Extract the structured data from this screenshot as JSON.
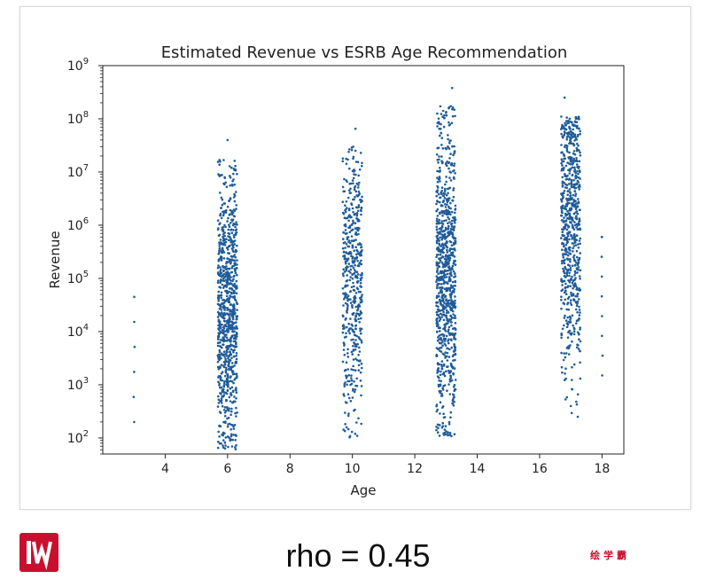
{
  "chart_data": {
    "type": "scatter",
    "title": "Estimated Revenue vs ESRB Age Recommendation",
    "xlabel": "Age",
    "ylabel": "Revenue",
    "xlim": [
      2.0,
      18.7
    ],
    "ylim": [
      50,
      1000000000
    ],
    "yscale": "log",
    "x_ticks": [
      4,
      6,
      8,
      10,
      12,
      14,
      16,
      18
    ],
    "y_ticks": [
      {
        "value": 100,
        "exp": "2"
      },
      {
        "value": 1000,
        "exp": "3"
      },
      {
        "value": 10000,
        "exp": "4"
      },
      {
        "value": 100000,
        "exp": "5"
      },
      {
        "value": 1000000,
        "exp": "6"
      },
      {
        "value": 10000000,
        "exp": "7"
      },
      {
        "value": 100000000,
        "exp": "8"
      },
      {
        "value": 1000000000,
        "exp": "9"
      }
    ],
    "y_tick_base": "10",
    "grid": false,
    "marker_color": "#1f5c99",
    "marker_size": 1.3,
    "groups": [
      {
        "x": 3,
        "y_range": [
          200,
          45000
        ],
        "approx_log10_median": 3.9,
        "approx_points": 6
      },
      {
        "x": 6,
        "y_range": [
          60,
          40000000
        ],
        "approx_log10_median": 4.3,
        "approx_points": 900
      },
      {
        "x": 10,
        "y_range": [
          90,
          70000000
        ],
        "approx_log10_median": 4.9,
        "approx_points": 500
      },
      {
        "x": 13,
        "y_range": [
          100,
          400000000
        ],
        "approx_log10_median": 5.0,
        "approx_points": 900
      },
      {
        "x": 17,
        "y_range": [
          250,
          250000000
        ],
        "approx_log10_median": 6.0,
        "approx_points": 700
      },
      {
        "x": 18,
        "y_range": [
          1500,
          600000
        ],
        "approx_log10_median": 4.2,
        "approx_points": 8
      }
    ],
    "outliers": [
      {
        "x": 13.2,
        "y": 380000000
      },
      {
        "x": 13.0,
        "y": 130000000
      },
      {
        "x": 16.8,
        "y": 250000000
      },
      {
        "x": 10.1,
        "y": 65000000
      },
      {
        "x": 6.0,
        "y": 40000000
      },
      {
        "x": 18.0,
        "y": 600000
      }
    ]
  },
  "caption": "rho = 0.45",
  "watermark_text": "绘学霸",
  "logo_icon": "iw-logo-icon",
  "colors": {
    "logo_bg": "#c8102e",
    "watermark": "#c8102e"
  }
}
